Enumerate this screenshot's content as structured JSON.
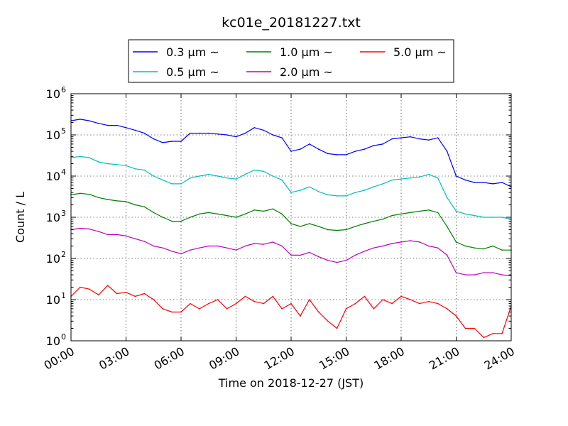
{
  "chart_data": {
    "type": "line",
    "title": "kc01e_20181227.txt",
    "xlabel": "Time on 2018-12-27 (JST)",
    "ylabel": "Count / L",
    "yscale": "log",
    "ylim": [
      1,
      1000000
    ],
    "xlim_hours": [
      0,
      24
    ],
    "grid": true,
    "legend_placement": "top-center, outside plot",
    "x_ticks": [
      "00:00",
      "03:00",
      "06:00",
      "09:00",
      "12:00",
      "15:00",
      "18:00",
      "21:00",
      "24:00"
    ],
    "y_ticks": [
      {
        "base": "10",
        "exp": "0"
      },
      {
        "base": "10",
        "exp": "1"
      },
      {
        "base": "10",
        "exp": "2"
      },
      {
        "base": "10",
        "exp": "3"
      },
      {
        "base": "10",
        "exp": "4"
      },
      {
        "base": "10",
        "exp": "5"
      },
      {
        "base": "10",
        "exp": "6"
      }
    ],
    "x": [
      "00:00",
      "00:30",
      "01:00",
      "01:30",
      "02:00",
      "02:30",
      "03:00",
      "03:30",
      "04:00",
      "04:30",
      "05:00",
      "05:30",
      "06:00",
      "06:30",
      "07:00",
      "07:30",
      "08:00",
      "08:30",
      "09:00",
      "09:30",
      "10:00",
      "10:30",
      "11:00",
      "11:30",
      "12:00",
      "12:30",
      "13:00",
      "13:30",
      "14:00",
      "14:30",
      "15:00",
      "15:30",
      "16:00",
      "16:30",
      "17:00",
      "17:30",
      "18:00",
      "18:30",
      "19:00",
      "19:30",
      "20:00",
      "20:30",
      "21:00",
      "21:30",
      "22:00",
      "22:30",
      "23:00",
      "23:30",
      "24:00"
    ],
    "series": [
      {
        "name": "0.3 μm ~",
        "color": "#0000ff",
        "values": [
          220000,
          240000,
          220000,
          190000,
          170000,
          170000,
          150000,
          130000,
          110000,
          80000,
          65000,
          70000,
          70000,
          110000,
          110000,
          110000,
          105000,
          100000,
          90000,
          110000,
          150000,
          130000,
          100000,
          85000,
          40000,
          45000,
          60000,
          45000,
          35000,
          33000,
          33000,
          40000,
          45000,
          55000,
          60000,
          80000,
          85000,
          90000,
          80000,
          75000,
          85000,
          40000,
          10000,
          8000,
          7000,
          7000,
          6500,
          7000,
          5500
        ]
      },
      {
        "name": "0.5 μm ~",
        "color": "#00bfbf",
        "values": [
          28000,
          30000,
          28000,
          22000,
          20000,
          19000,
          18000,
          15000,
          14000,
          10000,
          8000,
          6500,
          6500,
          9000,
          10000,
          11000,
          10000,
          9000,
          8500,
          11000,
          14000,
          13000,
          10000,
          8000,
          4000,
          4500,
          5500,
          4200,
          3500,
          3300,
          3300,
          4000,
          4500,
          5500,
          6500,
          8000,
          8500,
          9000,
          9500,
          11000,
          9000,
          3000,
          1400,
          1200,
          1100,
          1000,
          1000,
          1000,
          900
        ]
      },
      {
        "name": "1.0 μm ~",
        "color": "#008000",
        "values": [
          3500,
          3800,
          3600,
          3000,
          2700,
          2500,
          2400,
          2000,
          1800,
          1300,
          1000,
          800,
          800,
          1000,
          1200,
          1300,
          1200,
          1100,
          1000,
          1200,
          1500,
          1400,
          1600,
          1200,
          700,
          600,
          700,
          600,
          500,
          480,
          500,
          600,
          700,
          800,
          900,
          1100,
          1200,
          1300,
          1400,
          1500,
          1300,
          600,
          250,
          200,
          180,
          170,
          200,
          160,
          160
        ]
      },
      {
        "name": "2.0 μm ~",
        "color": "#bf00bf",
        "values": [
          500,
          540,
          520,
          450,
          380,
          380,
          350,
          300,
          260,
          200,
          180,
          150,
          130,
          160,
          180,
          200,
          200,
          180,
          160,
          200,
          230,
          220,
          250,
          200,
          120,
          120,
          140,
          110,
          90,
          80,
          90,
          120,
          150,
          180,
          200,
          230,
          250,
          270,
          250,
          200,
          180,
          120,
          45,
          40,
          40,
          45,
          45,
          40,
          38
        ]
      },
      {
        "name": "5.0 μm ~",
        "color": "#ff0000",
        "values": [
          12,
          20,
          18,
          13,
          22,
          14,
          15,
          12,
          14,
          10,
          6,
          5,
          5,
          8,
          6,
          8,
          10,
          6,
          8,
          12,
          9,
          8,
          12,
          6,
          8,
          4,
          10,
          5,
          3,
          2,
          6,
          8,
          12,
          6,
          10,
          8,
          12,
          10,
          8,
          9,
          8,
          6,
          4,
          2,
          2,
          1.2,
          1.5,
          1.5,
          7
        ]
      }
    ]
  }
}
